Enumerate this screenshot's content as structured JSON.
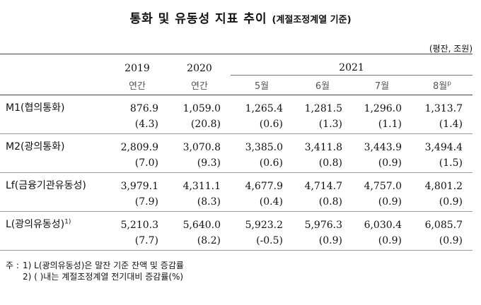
{
  "title": {
    "main": "통화 및 유동성 지표 추이",
    "sub": "(계절조정계열 기준)"
  },
  "unit": "(평잔, 조원)",
  "header": {
    "years": [
      "2019",
      "2020",
      "2021"
    ],
    "subcols": [
      "연간",
      "연간",
      "5월",
      "6월",
      "7월",
      "8월"
    ],
    "prelim_mark": "p"
  },
  "rows": [
    {
      "label": "M1(협의통화)",
      "sup": "",
      "values": [
        "876.9",
        "1,059.0",
        "1,265.4",
        "1,281.5",
        "1,296.0",
        "1,313.7"
      ],
      "pct": [
        "(4.3)",
        "(20.8)",
        "(0.6)",
        "(1.3)",
        "(1.1)",
        "(1.4)"
      ]
    },
    {
      "label": "M2(광의통화)",
      "sup": "",
      "values": [
        "2,809.9",
        "3,070.8",
        "3,385.0",
        "3,411.8",
        "3,443.9",
        "3,494.4"
      ],
      "pct": [
        "(7.0)",
        "(9.3)",
        "(0.6)",
        "(0.8)",
        "(0.9)",
        "(1.5)"
      ]
    },
    {
      "label": "Lf(금융기관유동성)",
      "sup": "",
      "values": [
        "3,979.1",
        "4,311.1",
        "4,677.9",
        "4,714.7",
        "4,757.0",
        "4,801.2"
      ],
      "pct": [
        "(7.9)",
        "(8.3)",
        "(0.4)",
        "(0.8)",
        "(0.9)",
        "(0.9)"
      ]
    },
    {
      "label": "L(광의유동성)",
      "sup": "1)",
      "values": [
        "5,210.3",
        "5,640.0",
        "5,923.2",
        "5,976.3",
        "6,030.4",
        "6,085.7"
      ],
      "pct": [
        "(7.7)",
        "(8.2)",
        "(-0.5)",
        "(0.9)",
        "(0.9)",
        "(0.9)"
      ]
    }
  ],
  "footnotes": {
    "prefix": "주 :",
    "items": [
      "1) L(광의유동성)은 말잔 기준 잔액 및 증감률",
      "2) ( )내는 계절조정계열 전기대비 증감률(%)"
    ]
  }
}
